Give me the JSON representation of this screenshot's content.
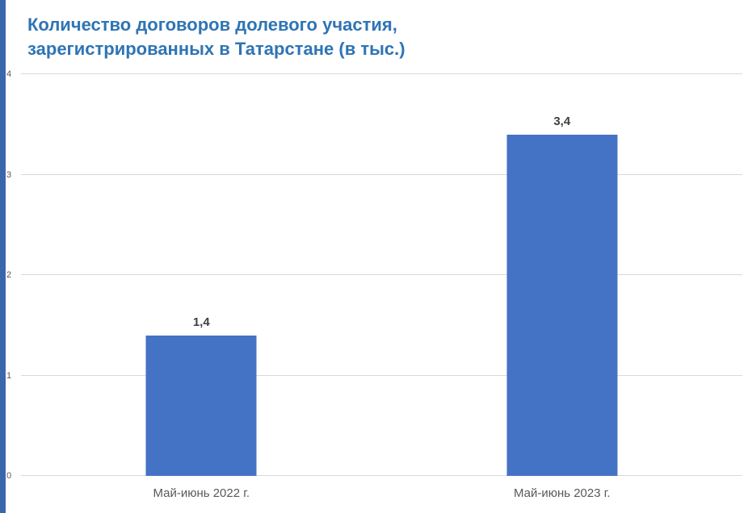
{
  "chart_data": {
    "type": "bar",
    "title": "Количество договоров долевого участия, зарегистрированных в Татарстане (в тыс.)",
    "title_lines": [
      "Количество договоров долевого участия,",
      "зарегистрированных в Татарстане (в тыс.)"
    ],
    "categories": [
      "Май-июнь 2022 г.",
      "Май-июнь 2023 г."
    ],
    "values": [
      1.4,
      3.4
    ],
    "value_labels": [
      "1,4",
      "3,4"
    ],
    "xlabel": "",
    "ylabel": "",
    "ylim": [
      0,
      4
    ],
    "yticks": [
      0,
      1,
      2,
      3,
      4
    ],
    "grid": "horizontal",
    "legend": "none",
    "colors": {
      "bar": "#4472C4",
      "title": "#2E74B5",
      "left_edge": "#3A66AC",
      "gridline": "#D9D9D9",
      "axis_text": "#595959",
      "value_text": "#404040"
    }
  }
}
